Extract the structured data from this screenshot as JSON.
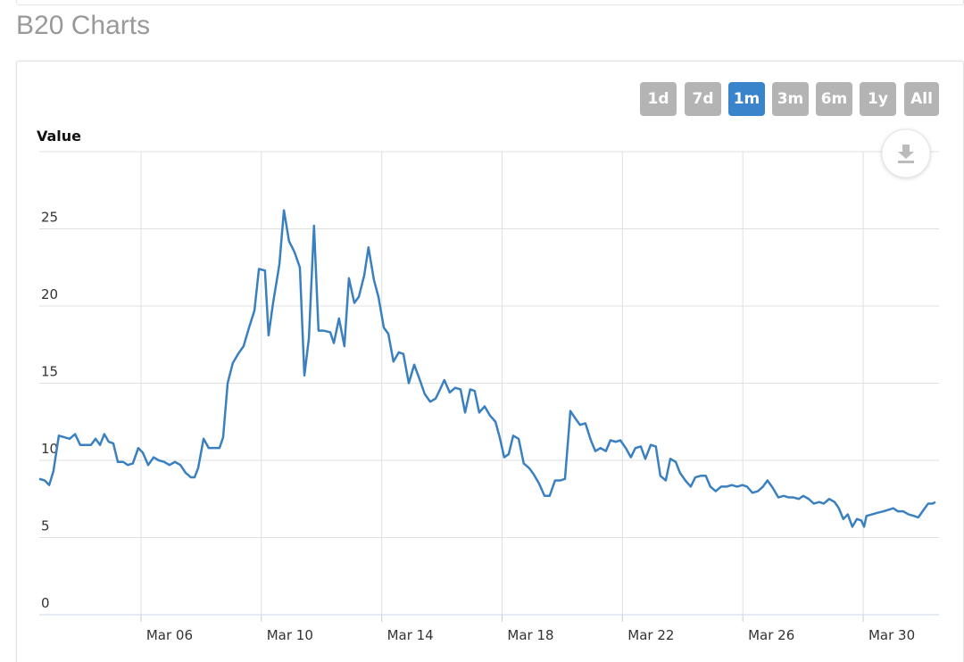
{
  "header": {
    "title": "B20 Charts"
  },
  "range_buttons": [
    {
      "label": "1d",
      "active": false
    },
    {
      "label": "7d",
      "active": false
    },
    {
      "label": "1m",
      "active": true
    },
    {
      "label": "3m",
      "active": false
    },
    {
      "label": "6m",
      "active": false
    },
    {
      "label": "1y",
      "active": false
    },
    {
      "label": "All",
      "active": false
    }
  ],
  "chart_data": {
    "type": "line",
    "y_axis_label": "Value",
    "color": "#3a80c0",
    "grid": true,
    "ylim": [
      0,
      30
    ],
    "yticks": [
      0,
      5,
      10,
      15,
      20,
      25
    ],
    "xlim": [
      2.62,
      32.52
    ],
    "xticks": [
      {
        "value": 6,
        "label": "Mar 06"
      },
      {
        "value": 10,
        "label": "Mar 10"
      },
      {
        "value": 14,
        "label": "Mar 14"
      },
      {
        "value": 18,
        "label": "Mar 18"
      },
      {
        "value": 22,
        "label": "Mar 22"
      },
      {
        "value": 26,
        "label": "Mar 26"
      },
      {
        "value": 30,
        "label": "Mar 30"
      }
    ],
    "x": [
      2.62,
      2.8,
      2.95,
      3.09,
      3.27,
      3.45,
      3.63,
      3.81,
      3.98,
      4.16,
      4.34,
      4.49,
      4.64,
      4.78,
      4.93,
      5.08,
      5.23,
      5.41,
      5.56,
      5.73,
      5.91,
      6.06,
      6.24,
      6.42,
      6.59,
      6.77,
      6.95,
      7.13,
      7.31,
      7.48,
      7.66,
      7.78,
      7.9,
      8.08,
      8.25,
      8.43,
      8.61,
      8.73,
      8.88,
      9.05,
      9.23,
      9.41,
      9.59,
      9.77,
      9.92,
      10.12,
      10.24,
      10.39,
      10.6,
      10.75,
      10.92,
      11.1,
      11.28,
      11.43,
      11.58,
      11.75,
      11.9,
      12.08,
      12.29,
      12.41,
      12.58,
      12.76,
      12.91,
      13.09,
      13.24,
      13.42,
      13.56,
      13.74,
      13.89,
      14.07,
      14.22,
      14.39,
      14.57,
      14.72,
      14.9,
      15.08,
      15.25,
      15.43,
      15.61,
      15.79,
      15.94,
      16.08,
      16.26,
      16.44,
      16.62,
      16.77,
      16.94,
      17.09,
      17.24,
      17.42,
      17.6,
      17.78,
      17.92,
      18.07,
      18.22,
      18.37,
      18.55,
      18.72,
      18.9,
      19.05,
      19.23,
      19.41,
      19.58,
      19.76,
      19.94,
      20.09,
      20.27,
      20.44,
      20.59,
      20.77,
      20.95,
      21.1,
      21.27,
      21.45,
      21.6,
      21.78,
      21.93,
      22.11,
      22.28,
      22.43,
      22.61,
      22.76,
      22.94,
      23.11,
      23.26,
      23.44,
      23.59,
      23.77,
      23.91,
      24.09,
      24.27,
      24.42,
      24.6,
      24.77,
      24.92,
      25.1,
      25.28,
      25.46,
      25.63,
      25.81,
      25.99,
      26.14,
      26.32,
      26.5,
      26.67,
      26.82,
      27.0,
      27.18,
      27.36,
      27.53,
      27.68,
      27.86,
      28.01,
      28.19,
      28.36,
      28.54,
      28.69,
      28.87,
      29.05,
      29.19,
      29.34,
      29.49,
      29.64,
      29.79,
      29.94,
      30.03,
      30.11,
      30.29,
      30.47,
      30.68,
      30.85,
      31.0,
      31.15,
      31.33,
      31.51,
      31.69,
      31.83,
      32.01,
      32.16,
      32.31,
      32.4
    ],
    "values": [
      8.8,
      8.7,
      8.4,
      9.3,
      11.6,
      11.5,
      11.4,
      11.7,
      11.0,
      11.0,
      11.0,
      11.4,
      11.0,
      11.7,
      11.2,
      11.1,
      9.9,
      9.9,
      9.7,
      9.8,
      10.8,
      10.5,
      9.7,
      10.2,
      10.0,
      9.9,
      9.7,
      9.9,
      9.7,
      9.2,
      8.9,
      8.9,
      9.5,
      11.4,
      10.8,
      10.8,
      10.8,
      11.5,
      15.0,
      16.3,
      16.9,
      17.4,
      18.6,
      19.7,
      22.4,
      22.3,
      18.1,
      20.2,
      22.7,
      26.2,
      24.2,
      23.5,
      22.5,
      15.5,
      17.9,
      25.2,
      18.4,
      18.4,
      18.3,
      17.6,
      19.2,
      17.4,
      21.8,
      20.2,
      20.6,
      22.0,
      23.8,
      21.7,
      20.6,
      18.6,
      18.2,
      16.4,
      17.0,
      16.9,
      15.0,
      16.2,
      15.3,
      14.3,
      13.8,
      14.0,
      14.6,
      15.2,
      14.4,
      14.7,
      14.6,
      13.1,
      14.6,
      14.5,
      13.1,
      13.5,
      12.9,
      12.5,
      11.5,
      10.2,
      10.4,
      11.6,
      11.4,
      9.8,
      9.5,
      9.1,
      8.5,
      7.7,
      7.7,
      8.7,
      8.7,
      8.8,
      13.2,
      12.7,
      12.3,
      12.4,
      11.3,
      10.6,
      10.8,
      10.6,
      11.3,
      11.2,
      11.3,
      10.8,
      10.2,
      10.8,
      10.9,
      10.1,
      11.0,
      10.9,
      9.0,
      8.7,
      10.1,
      9.9,
      9.2,
      8.7,
      8.3,
      8.9,
      9.0,
      9.0,
      8.3,
      8.0,
      8.3,
      8.3,
      8.4,
      8.3,
      8.4,
      8.3,
      7.9,
      8.0,
      8.3,
      8.7,
      8.2,
      7.6,
      7.7,
      7.6,
      7.6,
      7.5,
      7.7,
      7.5,
      7.2,
      7.3,
      7.2,
      7.5,
      7.3,
      6.9,
      6.2,
      6.5,
      5.7,
      6.2,
      6.1,
      5.7,
      6.4,
      6.5,
      6.6,
      6.7,
      6.8,
      6.9,
      6.7,
      6.7,
      6.5,
      6.4,
      6.3,
      6.8,
      7.2,
      7.2,
      7.3
    ]
  }
}
